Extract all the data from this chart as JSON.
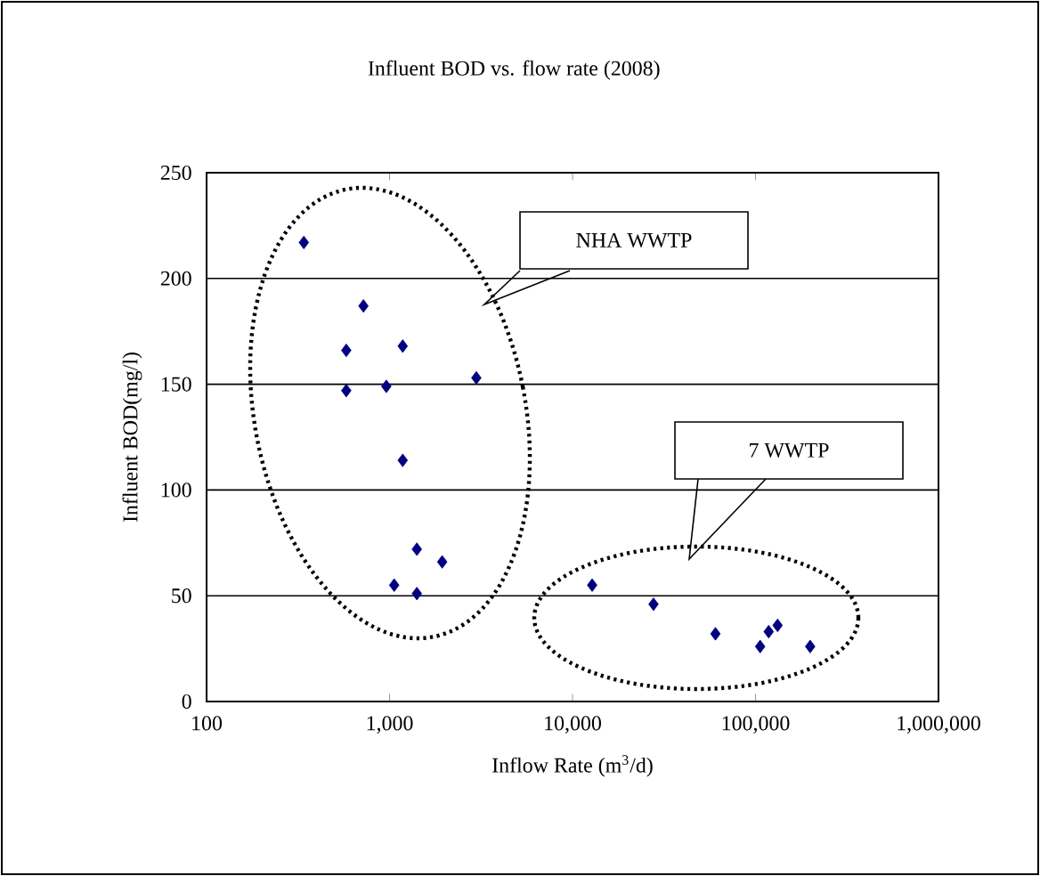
{
  "chart_data": {
    "type": "scatter",
    "title": "Influent BOD vs. flow rate (2008)",
    "xlabel": "Inflow Rate (m$^{3}$/d)",
    "ylabel": "Influent BOD(mg/l)",
    "log": "x",
    "grid": "y",
    "marker": "diamond",
    "xlim": [
      100,
      1000000
    ],
    "ylim": [
      0,
      250
    ],
    "xticks": [
      {
        "value": 100,
        "label": "100"
      },
      {
        "value": 1000,
        "label": "1,000"
      },
      {
        "value": 10000,
        "label": "10,000"
      },
      {
        "value": 100000,
        "label": "100,000"
      },
      {
        "value": 1000000,
        "label": "1,000,000"
      }
    ],
    "yticks": [
      0,
      50,
      100,
      150,
      200,
      250
    ],
    "annotations": [
      "NHA WWTP",
      "7 WWTP"
    ],
    "series": [
      {
        "color": "#000080",
        "x": [
          340,
          720,
          580,
          1180,
          2980,
          580,
          960,
          1180,
          1410,
          1940,
          1060,
          1410,
          12800,
          27700,
          60400,
          106000,
          118000,
          132000,
          199000
        ],
        "values": [
          217,
          187,
          166,
          168,
          153,
          147,
          149,
          114,
          72,
          66,
          55,
          51,
          55,
          46,
          32,
          26,
          33,
          36,
          26
        ]
      }
    ]
  }
}
